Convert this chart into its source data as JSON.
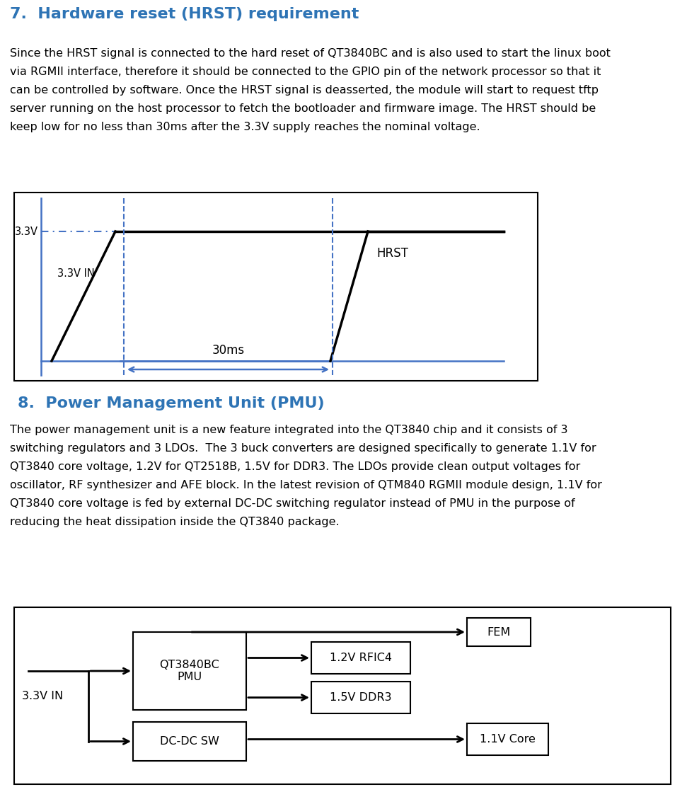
{
  "title1": "7.  Hardware reset (HRST) requirement",
  "title1_color": "#2E74B5",
  "para1_lines": [
    "Since the HRST signal is connected to the hard reset of QT3840BC and is also used to start the linux boot",
    "via RGMII interface, therefore it should be connected to the GPIO pin of the network processor so that it",
    "can be controlled by software. Once the HRST signal is deasserted, the module will start to request tftp",
    "server running on the host processor to fetch the bootloader and firmware image. The HRST should be",
    "keep low for no less than 30ms after the 3.3V supply reaches the nominal voltage."
  ],
  "title2": "8.  Power Management Unit (PMU)",
  "title2_color": "#2E74B5",
  "para2_lines": [
    "The power management unit is a new feature integrated into the QT3840 chip and it consists of 3",
    "switching regulators and 3 LDOs.  The 3 buck converters are designed specifically to generate 1.1V for",
    "QT3840 core voltage, 1.2V for QT2518B, 1.5V for DDR3. The LDOs provide clean output voltages for",
    "oscillator, RF synthesizer and AFE block. In the latest revision of QTM840 RGMII module design, 1.1V for",
    "QT3840 core voltage is fed by external DC-DC switching regulator instead of PMU in the purpose of",
    "reducing the heat dissipation inside the QT3840 package."
  ],
  "diag1_label_33v": "3.3V",
  "diag1_label_33vin": "3.3V IN",
  "diag1_label_30ms": "30ms",
  "diag1_label_hrst": "HRST",
  "diag2_label_33vin": "3.3V IN",
  "diag2_box1": "QT3840BC\nPMU",
  "diag2_box2": "DC-DC SW",
  "diag2_box3": "1.2V RFIC4",
  "diag2_box4": "1.5V DDR3",
  "diag2_box5": "FEM",
  "diag2_box6": "1.1V Core",
  "signal_color": "#000000",
  "blue_color": "#4472C4",
  "dashed_color": "#4472C4",
  "box_color": "#000000",
  "bg_color": "#ffffff"
}
